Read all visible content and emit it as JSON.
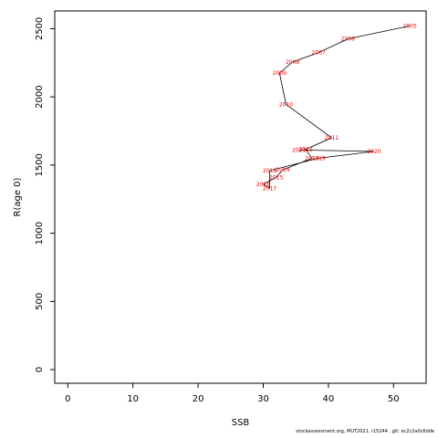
{
  "chart_data": {
    "type": "line",
    "xlabel": "SSB",
    "ylabel": "R(age 0)",
    "xlim": [
      -2,
      55
    ],
    "ylim": [
      -100,
      2630
    ],
    "xticks": [
      0,
      10,
      20,
      30,
      40,
      50
    ],
    "yticks": [
      0,
      500,
      1000,
      1500,
      2000,
      2500
    ],
    "grid": false,
    "line_color": "#000000",
    "label_color": "#ff0000",
    "points": [
      {
        "label": "2005",
        "x": 52.5,
        "y": 2520
      },
      {
        "label": "2006",
        "x": 43.0,
        "y": 2425
      },
      {
        "label": "2007",
        "x": 38.5,
        "y": 2325
      },
      {
        "label": "2008",
        "x": 34.5,
        "y": 2255
      },
      {
        "label": "2009",
        "x": 32.5,
        "y": 2175
      },
      {
        "label": "2010",
        "x": 33.5,
        "y": 1945
      },
      {
        "label": "2011",
        "x": 40.5,
        "y": 1700
      },
      {
        "label": "2012",
        "x": 36.5,
        "y": 1615
      },
      {
        "label": "2013",
        "x": 37.5,
        "y": 1550
      },
      {
        "label": "2014",
        "x": 33.0,
        "y": 1465
      },
      {
        "label": "2015",
        "x": 32.0,
        "y": 1410
      },
      {
        "label": "2016",
        "x": 30.0,
        "y": 1360
      },
      {
        "label": "2017",
        "x": 31.0,
        "y": 1330
      },
      {
        "label": "2018",
        "x": 31.0,
        "y": 1460
      },
      {
        "label": "2019",
        "x": 38.5,
        "y": 1550
      },
      {
        "label": "2020",
        "x": 47.0,
        "y": 1600
      },
      {
        "label": "2021",
        "x": 35.5,
        "y": 1610
      }
    ]
  },
  "footer": "stockassessment.org, MUT2021, r15244 , git: ec2c2a0c6dde"
}
